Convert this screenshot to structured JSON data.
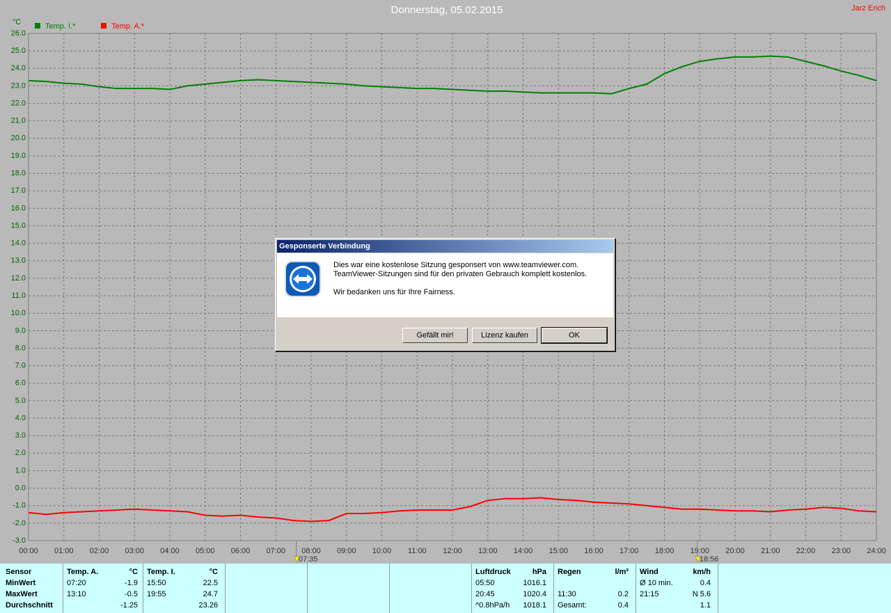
{
  "header": {
    "credit": "Jarz Erich"
  },
  "chart_data": {
    "type": "line",
    "title": "Donnerstag, 05.02.2015",
    "y_label": "°C",
    "grid": true,
    "legend": "top-left",
    "x": [
      0,
      0.5,
      1,
      1.5,
      2,
      2.5,
      3,
      3.5,
      4,
      4.5,
      5,
      5.5,
      6,
      6.5,
      7,
      7.5,
      8,
      8.5,
      9,
      9.5,
      10,
      10.5,
      11,
      11.5,
      12,
      12.5,
      13,
      13.5,
      14,
      14.5,
      15,
      15.5,
      16,
      16.5,
      17,
      17.5,
      18,
      18.5,
      19,
      19.5,
      20,
      20.5,
      21,
      21.5,
      22,
      22.5,
      23,
      23.5,
      24
    ],
    "series": [
      {
        "name": "Temp. I.*",
        "color": "#008000",
        "values": [
          23.3,
          23.25,
          23.15,
          23.1,
          22.95,
          22.85,
          22.85,
          22.85,
          22.8,
          23.0,
          23.1,
          23.2,
          23.3,
          23.35,
          23.3,
          23.25,
          23.2,
          23.15,
          23.1,
          23.0,
          22.95,
          22.9,
          22.85,
          22.85,
          22.8,
          22.75,
          22.7,
          22.7,
          22.65,
          22.6,
          22.6,
          22.6,
          22.6,
          22.55,
          22.85,
          23.1,
          23.7,
          24.1,
          24.4,
          24.55,
          24.65,
          24.65,
          24.7,
          24.65,
          24.4,
          24.15,
          23.85,
          23.6,
          23.3
        ]
      },
      {
        "name": "Temp. A.*",
        "color": "#ff0000",
        "values": [
          -1.4,
          -1.5,
          -1.4,
          -1.35,
          -1.3,
          -1.25,
          -1.2,
          -1.25,
          -1.3,
          -1.35,
          -1.55,
          -1.6,
          -1.55,
          -1.65,
          -1.7,
          -1.85,
          -1.9,
          -1.85,
          -1.45,
          -1.45,
          -1.4,
          -1.3,
          -1.25,
          -1.25,
          -1.25,
          -1.05,
          -0.7,
          -0.6,
          -0.6,
          -0.55,
          -0.65,
          -0.7,
          -0.8,
          -0.85,
          -0.9,
          -1.0,
          -1.1,
          -1.2,
          -1.2,
          -1.25,
          -1.3,
          -1.3,
          -1.35,
          -1.25,
          -1.2,
          -1.1,
          -1.15,
          -1.3,
          -1.35
        ]
      }
    ],
    "xlim": [
      0,
      24
    ],
    "xticks": [
      {
        "value": 0,
        "label": "00:00"
      },
      {
        "value": 1,
        "label": "01:00"
      },
      {
        "value": 2,
        "label": "02:00"
      },
      {
        "value": 3,
        "label": "03:00"
      },
      {
        "value": 4,
        "label": "04:00"
      },
      {
        "value": 5,
        "label": "05:00"
      },
      {
        "value": 6,
        "label": "06:00"
      },
      {
        "value": 7,
        "label": "07:00"
      },
      {
        "value": 8,
        "label": "08:00"
      },
      {
        "value": 9,
        "label": "09:00"
      },
      {
        "value": 10,
        "label": "10:00"
      },
      {
        "value": 11,
        "label": "11:00"
      },
      {
        "value": 12,
        "label": "12:00"
      },
      {
        "value": 13,
        "label": "13:00"
      },
      {
        "value": 14,
        "label": "14:00"
      },
      {
        "value": 15,
        "label": "15:00"
      },
      {
        "value": 16,
        "label": "16:00"
      },
      {
        "value": 17,
        "label": "17:00"
      },
      {
        "value": 18,
        "label": "18:00"
      },
      {
        "value": 19,
        "label": "19:00"
      },
      {
        "value": 20,
        "label": "20:00"
      },
      {
        "value": 21,
        "label": "21:00"
      },
      {
        "value": 22,
        "label": "22:00"
      },
      {
        "value": 23,
        "label": "23:00"
      },
      {
        "value": 24,
        "label": "24:00"
      }
    ],
    "ylim": [
      -3,
      26
    ],
    "yticks": [
      {
        "value": 26,
        "label": "26.0"
      },
      {
        "value": 25,
        "label": "25.0"
      },
      {
        "value": 24,
        "label": "24.0"
      },
      {
        "value": 23,
        "label": "23.0"
      },
      {
        "value": 22,
        "label": "22.0"
      },
      {
        "value": 21,
        "label": "21.0"
      },
      {
        "value": 20,
        "label": "20.0"
      },
      {
        "value": 19,
        "label": "19.0"
      },
      {
        "value": 18,
        "label": "18.0"
      },
      {
        "value": 17,
        "label": "17.0"
      },
      {
        "value": 16,
        "label": "16.0"
      },
      {
        "value": 15,
        "label": "15.0"
      },
      {
        "value": 14,
        "label": "14.0"
      },
      {
        "value": 13,
        "label": "13.0"
      },
      {
        "value": 12,
        "label": "12.0"
      },
      {
        "value": 11,
        "label": "11.0"
      },
      {
        "value": 10,
        "label": "10.0"
      },
      {
        "value": 9,
        "label": "9.0"
      },
      {
        "value": 8,
        "label": "8.0"
      },
      {
        "value": 7,
        "label": "7.0"
      },
      {
        "value": 6,
        "label": "6.0"
      },
      {
        "value": 5,
        "label": "5.0"
      },
      {
        "value": 4,
        "label": "4.0"
      },
      {
        "value": 3,
        "label": "3.0"
      },
      {
        "value": 2,
        "label": "2.0"
      },
      {
        "value": 1,
        "label": "1.0"
      },
      {
        "value": 0,
        "label": "0.0"
      },
      {
        "value": -1,
        "label": "-1.0"
      },
      {
        "value": -2,
        "label": "-2.0"
      },
      {
        "value": -3,
        "label": "-3.0"
      }
    ],
    "markers": [
      {
        "value": 7.5833,
        "label": "07:35"
      },
      {
        "value": 18.9333,
        "label": "18:56"
      }
    ]
  },
  "stats": {
    "row_labels": [
      "Sensor",
      "MinWert",
      "MaxWert",
      "Durchschnitt"
    ],
    "groups": [
      {
        "header": [
          "Temp. A.",
          "°C"
        ],
        "rows": [
          [
            "07:20",
            "-1.9"
          ],
          [
            "13:10",
            "-0.5"
          ],
          [
            null,
            "-1.25"
          ]
        ]
      },
      {
        "header": [
          "Temp. I.",
          "°C"
        ],
        "rows": [
          [
            "15:50",
            "22.5"
          ],
          [
            "19:55",
            "24.7"
          ],
          [
            null,
            "23.26"
          ]
        ]
      },
      {
        "header": [
          "Luftdruck",
          "hPa"
        ],
        "rows": [
          [
            "05:50",
            "1016.1"
          ],
          [
            "20:45",
            "1020.4"
          ],
          [
            "^0.8hPa/h",
            "1018.1"
          ]
        ]
      },
      {
        "header": [
          "Regen",
          "l/m²"
        ],
        "rows": [
          [
            null,
            null
          ],
          [
            "11:30",
            "0.2"
          ],
          [
            "Gesamt:",
            "0.4"
          ]
        ]
      },
      {
        "header": [
          "Wind",
          "km/h"
        ],
        "rows": [
          [
            "Ø 10 min.",
            "0.4"
          ],
          [
            "21:15",
            "N 5.6"
          ],
          [
            null,
            "1.1"
          ]
        ]
      }
    ]
  },
  "dialog": {
    "title": "Gesponserte Verbindung",
    "lines": [
      "Dies war eine kostenlose Sitzung gesponsert von www.teamviewer.com.",
      "TeamViewer-Sitzungen sind für den privaten Gebrauch komplett kostenlos.",
      "Wir bedanken uns für Ihre Fairness."
    ],
    "buttons": [
      "Gefällt mir!",
      "Lizenz kaufen",
      "OK"
    ]
  }
}
